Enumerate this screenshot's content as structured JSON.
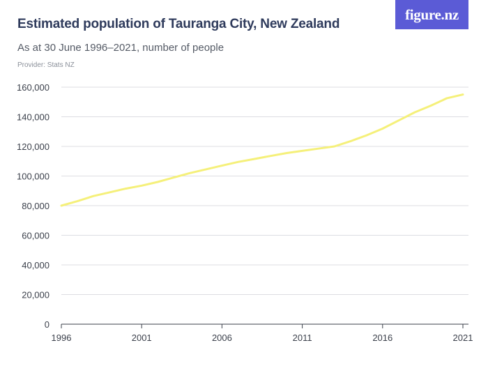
{
  "header": {
    "title": "Estimated population of Tauranga City, New Zealand",
    "subtitle": "As at 30 June 1996–2021, number of people",
    "provider": "Provider: Stats NZ",
    "logo": "figure.nz"
  },
  "colors": {
    "line": "#f5f07a",
    "grid": "#dcdde2",
    "axis": "#3a3f4a",
    "logo_bg": "#5b5bd6",
    "title": "#2f3b5c"
  },
  "chart_data": {
    "type": "line",
    "title": "Estimated population of Tauranga City, New Zealand",
    "subtitle": "As at 30 June 1996–2021, number of people",
    "xlabel": "",
    "ylabel": "",
    "xlim": [
      1996,
      2021
    ],
    "ylim": [
      0,
      160000
    ],
    "x_ticks": [
      1996,
      2001,
      2006,
      2011,
      2016,
      2021
    ],
    "y_ticks": [
      0,
      20000,
      40000,
      60000,
      80000,
      100000,
      120000,
      140000,
      160000
    ],
    "y_tick_labels": [
      "0",
      "20,000",
      "40,000",
      "60,000",
      "80,000",
      "100,000",
      "120,000",
      "140,000",
      "160,000"
    ],
    "grid": true,
    "series": [
      {
        "x": [
          1996,
          1997,
          1998,
          1999,
          2000,
          2001,
          2002,
          2003,
          2004,
          2005,
          2006,
          2007,
          2008,
          2009,
          2010,
          2011,
          2012,
          2013,
          2014,
          2015,
          2016,
          2017,
          2018,
          2019,
          2020,
          2021
        ],
        "values": [
          80000,
          83000,
          86500,
          89000,
          91500,
          93500,
          96000,
          99000,
          102000,
          104500,
          107000,
          109500,
          111500,
          113500,
          115500,
          117000,
          118500,
          120000,
          123500,
          127500,
          132000,
          137500,
          143000,
          147500,
          152500,
          155000
        ]
      }
    ]
  }
}
